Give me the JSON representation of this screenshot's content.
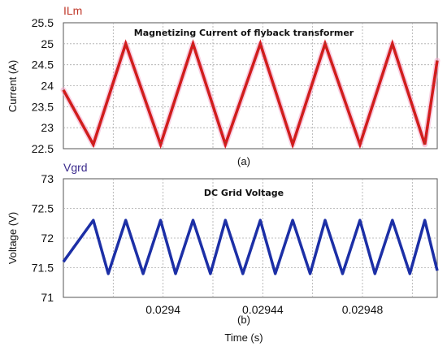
{
  "chart_data": [
    {
      "type": "line",
      "signal_label": "ILm",
      "title": "Magnetizing Current of flyback transformer",
      "ylabel": "Current (A)",
      "caption": "(a)",
      "ylim": [
        22.5,
        25.5
      ],
      "yticks": [
        "22.5",
        "23",
        "23.5",
        "24",
        "24.5",
        "25",
        "25.5"
      ],
      "xlim": [
        0.02936,
        0.02951
      ],
      "grid": true,
      "color": "#d7191c",
      "series": [
        {
          "x": [
            0.02936,
            0.029372,
            0.029385,
            0.029399,
            0.029412,
            0.029425,
            0.029439,
            0.029452,
            0.029465,
            0.029479,
            0.029492,
            0.029505,
            0.02951
          ],
          "values": [
            23.9,
            22.6,
            25.0,
            22.6,
            25.0,
            22.6,
            25.0,
            22.6,
            25.0,
            22.6,
            25.0,
            22.6,
            24.6
          ]
        }
      ]
    },
    {
      "type": "line",
      "signal_label": "Vgrd",
      "title": "DC Grid Voltage",
      "ylabel": "Voltage (V)",
      "caption": "(b)",
      "xlabel": "Time (s)",
      "ylim": [
        71.0,
        73.0
      ],
      "yticks": [
        "71",
        "71.5",
        "72",
        "72.5",
        "73"
      ],
      "xlim": [
        0.02936,
        0.02951
      ],
      "xticks": [
        {
          "value": 0.0294,
          "label": "0.0294"
        },
        {
          "value": 0.02944,
          "label": "0.02944"
        },
        {
          "value": 0.02948,
          "label": "0.02948"
        }
      ],
      "grid": true,
      "color": "#1c2fa6",
      "series": [
        {
          "x": [
            0.02936,
            0.029372,
            0.029378,
            0.029385,
            0.029392,
            0.029399,
            0.029405,
            0.029412,
            0.029419,
            0.029425,
            0.029432,
            0.029439,
            0.029445,
            0.029452,
            0.029459,
            0.029465,
            0.029472,
            0.029479,
            0.029485,
            0.029492,
            0.029499,
            0.029505,
            0.02951
          ],
          "values": [
            71.6,
            72.3,
            71.4,
            72.3,
            71.4,
            72.3,
            71.4,
            72.3,
            71.4,
            72.3,
            71.4,
            72.3,
            71.4,
            72.3,
            71.4,
            72.3,
            71.4,
            72.3,
            71.4,
            72.3,
            71.4,
            72.3,
            71.45
          ]
        }
      ]
    }
  ]
}
